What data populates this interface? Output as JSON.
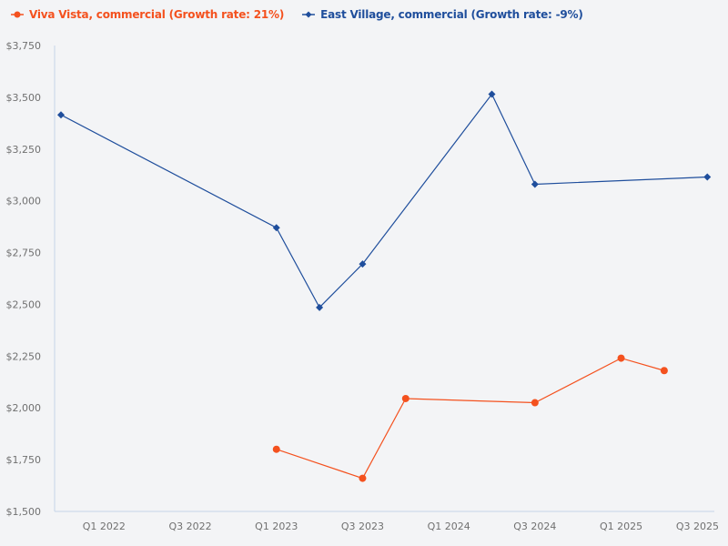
{
  "chart_data": {
    "type": "line",
    "title": "",
    "xlabel": "",
    "ylabel": "",
    "ylim": [
      1500,
      3750
    ],
    "y_ticks": [
      "$1,500",
      "$1,750",
      "$2,000",
      "$2,250",
      "$2,500",
      "$2,750",
      "$3,000",
      "$3,250",
      "$3,500",
      "$3,750"
    ],
    "y_tick_values": [
      1500,
      1750,
      2000,
      2250,
      2500,
      2750,
      3000,
      3250,
      3500,
      3750
    ],
    "x_ticks": [
      "Q1 2022",
      "Q3 2022",
      "Q1 2023",
      "Q3 2023",
      "Q1 2024",
      "Q3 2024",
      "Q1 2025",
      "Q3 2025"
    ],
    "x": [
      "Q4 2021",
      "Q1 2022",
      "Q2 2022",
      "Q3 2022",
      "Q4 2022",
      "Q1 2023",
      "Q2 2023",
      "Q3 2023",
      "Q4 2023",
      "Q1 2024",
      "Q2 2024",
      "Q3 2024",
      "Q4 2024",
      "Q1 2025",
      "Q2 2025",
      "Q3 2025"
    ],
    "grid": false,
    "legend_position": "top-left",
    "series": [
      {
        "name": "Viva Vista, commercial (Growth rate: 21%)",
        "color": "#f4511e",
        "marker": "circle",
        "points": [
          {
            "x": "Q1 2023",
            "y": 1800
          },
          {
            "x": "Q3 2023",
            "y": 1660
          },
          {
            "x": "Q4 2023",
            "y": 2045
          },
          {
            "x": "Q3 2024",
            "y": 2025
          },
          {
            "x": "Q1 2025",
            "y": 2240
          },
          {
            "x": "Q2 2025",
            "y": 2180
          }
        ]
      },
      {
        "name": "East Village, commercial (Growth rate: -9%)",
        "color": "#1f4e9c",
        "marker": "diamond",
        "points": [
          {
            "x": "Q4 2021",
            "y": 3415
          },
          {
            "x": "Q1 2023",
            "y": 2870
          },
          {
            "x": "Q2 2023",
            "y": 2485
          },
          {
            "x": "Q3 2023",
            "y": 2695
          },
          {
            "x": "Q2 2024",
            "y": 3515
          },
          {
            "x": "Q3 2024",
            "y": 3080
          },
          {
            "x": "Q3 2025",
            "y": 3115
          }
        ]
      }
    ]
  },
  "legend": {
    "items": [
      {
        "label": "Viva Vista, commercial (Growth rate: 21%)",
        "color": "#f4511e"
      },
      {
        "label": "East Village, commercial (Growth rate: -9%)",
        "color": "#1f4e9c"
      }
    ]
  },
  "colors": {
    "background": "#f3f4f6",
    "axis": "#c5d3e8",
    "tick_text": "#707070"
  }
}
